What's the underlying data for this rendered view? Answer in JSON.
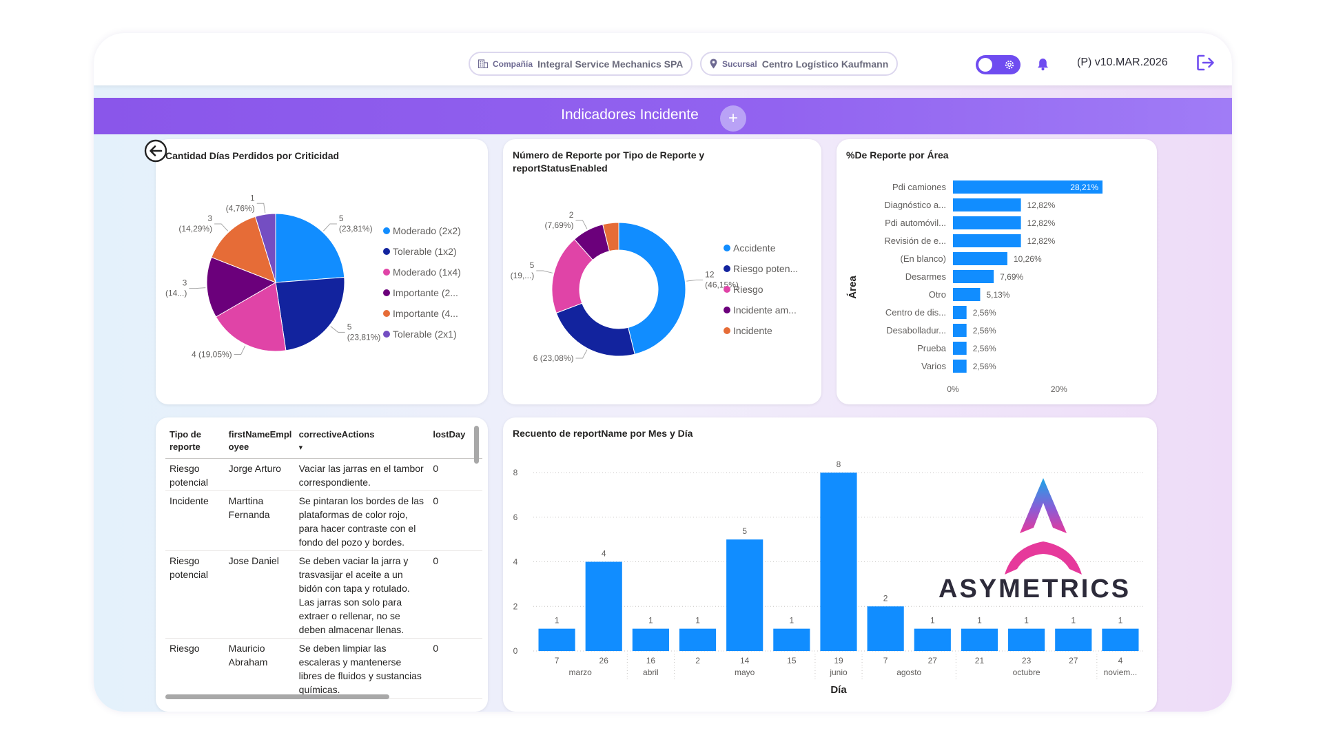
{
  "topbar": {
    "company_label": "Compañía",
    "company_value": "Integral Service Mechanics SPA",
    "branch_label": "Sucursal",
    "branch_value": "Centro Logístico Kaufmann",
    "version": "(P) v10.MAR.2026"
  },
  "header": {
    "title": "Indicadores Incidente",
    "add_symbol": "+"
  },
  "icons": [
    "building-icon",
    "location-pin-icon",
    "gear-icon",
    "bell-icon",
    "logout-icon",
    "back-arrow-icon"
  ],
  "colors": {
    "accent": "#8a56ea",
    "bar_blue": "#118dff"
  },
  "pie_card": {
    "title": "Cantidad Días Perdidos por Criticidad",
    "legend": [
      "Moderado (2x2)",
      "Tolerable (1x2)",
      "Moderado (1x4)",
      "Importante (2...",
      "Importante (4...",
      "Tolerable (2x1)"
    ],
    "data_labels": [
      [
        "5",
        "(23,81%)"
      ],
      [
        "5",
        "(23,81%)"
      ],
      [
        "4 (19,05%)"
      ],
      [
        "3",
        "(14...)"
      ],
      [
        "3",
        "(14,29%)"
      ],
      [
        "1",
        "(4,76%)"
      ]
    ]
  },
  "donut_card": {
    "title_line1": "Número de Reporte por Tipo de Reporte y",
    "title_line2": "reportStatusEnabled",
    "legend": [
      "Accidente",
      "Riesgo poten...",
      "Riesgo",
      "Incidente am...",
      "Incidente"
    ],
    "data_labels": [
      [
        "12",
        "(46,15%)"
      ],
      [
        "6 (23,08%)"
      ],
      [
        "5",
        "(19,...)"
      ],
      [
        "2",
        "(7,69%)"
      ]
    ]
  },
  "hbar_card": {
    "title": "%De Reporte por Área",
    "axis_title": "Área",
    "x_ticks": [
      "0%",
      "20%"
    ]
  },
  "table_card": {
    "headers": [
      "Tipo de reporte",
      "firstNameEmployee",
      "correctiveActions",
      "lostDay"
    ],
    "sort_indicator": "▾",
    "rows": [
      {
        "type": "Riesgo potencial",
        "name": "Jorge Arturo",
        "action": "Vaciar las jarras en el tambor correspondiente.",
        "lost": "0"
      },
      {
        "type": "Incidente",
        "name": "Marttina Fernanda",
        "action": "Se pintaran los bordes de las plataformas de color rojo, para hacer contraste con el fondo del pozo y bordes.",
        "lost": "0"
      },
      {
        "type": "Riesgo potencial",
        "name": "Jose Daniel",
        "action": "Se deben vaciar la jarra y trasvasijar el aceite a un bidón con tapa y rotulado. Las jarras son solo para extraer o rellenar, no se deben almacenar llenas.",
        "lost": "0"
      },
      {
        "type": "Riesgo",
        "name": "Mauricio Abraham",
        "action": "Se deben limpiar las escaleras y mantenerse libres de fluidos y sustancias químicas.",
        "lost": "0"
      }
    ]
  },
  "vbar_card": {
    "title": "Recuento de reportName por Mes y Día",
    "xlabel": "Día",
    "months": [
      {
        "label": "marzo",
        "from": 0,
        "to": 1
      },
      {
        "label": "abril",
        "from": 2,
        "to": 2
      },
      {
        "label": "mayo",
        "from": 3,
        "to": 5
      },
      {
        "label": "junio",
        "from": 6,
        "to": 6
      },
      {
        "label": "agosto",
        "from": 7,
        "to": 8
      },
      {
        "label": "octubre",
        "from": 9,
        "to": 11
      },
      {
        "label": "noviem...",
        "from": 12,
        "to": 12
      }
    ]
  },
  "brand": {
    "name": "ASYMETRICS"
  },
  "chart_data": [
    {
      "type": "pie",
      "title": "Cantidad Días Perdidos por Criticidad",
      "categories": [
        "Moderado (2x2)",
        "Tolerable (1x2)",
        "Moderado (1x4)",
        "Importante (2...",
        "Importante (4...",
        "Tolerable (2x1)"
      ],
      "values": [
        5,
        5,
        4,
        3,
        3,
        1
      ],
      "colors": [
        "#118dff",
        "#12239e",
        "#e044a7",
        "#6b007b",
        "#e66c37",
        "#744ec2"
      ],
      "legend": "right"
    },
    {
      "type": "pie",
      "variant": "donut",
      "title": "Número de Reporte por Tipo de Reporte y reportStatusEnabled",
      "categories": [
        "Accidente",
        "Riesgo poten...",
        "Riesgo",
        "Incidente am...",
        "Incidente"
      ],
      "values": [
        12,
        6,
        5,
        2,
        1
      ],
      "colors": [
        "#118dff",
        "#12239e",
        "#e044a7",
        "#6b007b",
        "#e66c37"
      ],
      "legend": "right"
    },
    {
      "type": "bar",
      "orientation": "horizontal",
      "title": "%De Reporte por Área",
      "categories": [
        "Pdi camiones",
        "Diagnóstico a...",
        "Pdi automóvil...",
        "Revisión de e...",
        "(En blanco)",
        "Desarmes",
        "Otro",
        "Centro de dis...",
        "Desabolladur...",
        "Prueba",
        "Varios"
      ],
      "values": [
        28.21,
        12.82,
        12.82,
        12.82,
        10.26,
        7.69,
        5.13,
        2.56,
        2.56,
        2.56,
        2.56
      ],
      "value_labels": [
        "28,21%",
        "12,82%",
        "12,82%",
        "12,82%",
        "10,26%",
        "7,69%",
        "5,13%",
        "2,56%",
        "2,56%",
        "2,56%",
        "2,56%"
      ],
      "ylabel": "Área",
      "xlim": [
        0,
        28.21
      ],
      "x_ticks": [
        "0%",
        "20%"
      ]
    },
    {
      "type": "bar",
      "title": "Recuento de reportName por Mes y Día",
      "categories": [
        "7",
        "26",
        "16",
        "2",
        "14",
        "15",
        "19",
        "7",
        "27",
        "21",
        "23",
        "27",
        "4"
      ],
      "values": [
        1,
        4,
        1,
        1,
        5,
        1,
        8,
        2,
        1,
        1,
        1,
        1,
        1
      ],
      "xlabel": "Día",
      "ylim": [
        0,
        8
      ],
      "y_ticks": [
        "0",
        "2",
        "4",
        "6",
        "8"
      ],
      "gridlines": true
    }
  ]
}
